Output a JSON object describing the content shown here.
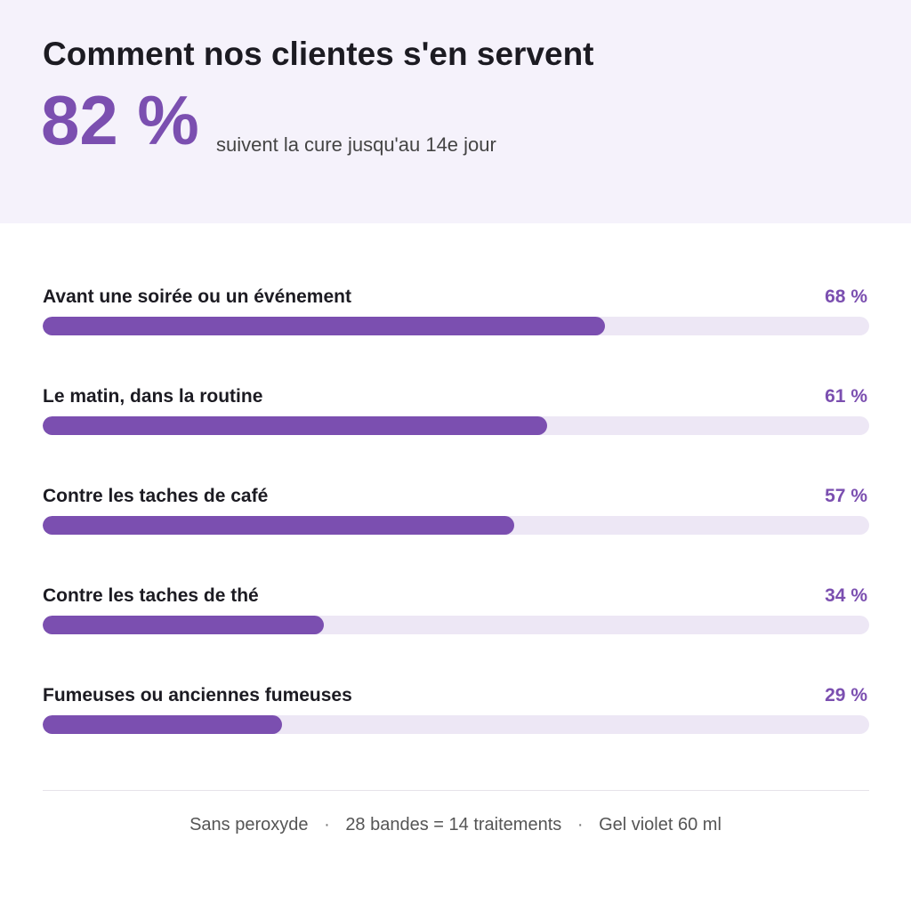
{
  "header": {
    "title": "Comment nos clientes s'en servent",
    "headline_value": "82 %",
    "headline_caption": "suivent la cure jusqu'au 14e jour"
  },
  "colors": {
    "accent": "#7b4fb0",
    "track": "#ede7f5",
    "header_background": "#f5f2fb"
  },
  "chart_data": {
    "type": "bar",
    "orientation": "horizontal",
    "xlim": [
      0,
      100
    ],
    "categories": [
      "Avant une soirée ou un événement",
      "Le matin, dans la routine",
      "Contre les taches de café",
      "Contre les taches de thé",
      "Fumeuses ou anciennes fumeuses"
    ],
    "values": [
      68,
      61,
      57,
      34,
      29
    ],
    "value_labels": [
      "68 %",
      "61 %",
      "57 %",
      "34 %",
      "29 %"
    ]
  },
  "footer": {
    "items": [
      "Sans peroxyde",
      "28 bandes = 14 traitements",
      "Gel violet 60 ml"
    ],
    "separator": "·"
  }
}
